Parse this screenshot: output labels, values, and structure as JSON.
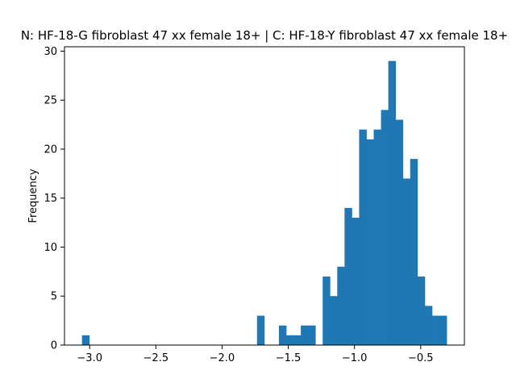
{
  "chart_data": {
    "type": "bar",
    "subtype": "histogram",
    "title": "N: HF-18-G fibroblast 47 xx female 18+ | C: HF-18-Y fibroblast 47 xx female 18+",
    "xlabel": "",
    "ylabel": "Frequency",
    "xlim": [
      -3.19,
      -0.17
    ],
    "ylim": [
      0,
      30.45
    ],
    "x_ticks": [
      -3.0,
      -2.5,
      -2.0,
      -1.5,
      -1.0,
      -0.5
    ],
    "x_tick_labels": [
      "−3.0",
      "−2.5",
      "−2.0",
      "−1.5",
      "−1.0",
      "−0.5"
    ],
    "y_ticks": [
      0,
      5,
      10,
      15,
      20,
      25,
      30
    ],
    "y_tick_labels": [
      "0",
      "5",
      "10",
      "15",
      "20",
      "25",
      "30"
    ],
    "bin_start": -3.058,
    "bin_width": 0.05508,
    "counts": [
      1,
      0,
      0,
      0,
      0,
      0,
      0,
      0,
      0,
      0,
      0,
      0,
      0,
      0,
      0,
      0,
      0,
      0,
      0,
      0,
      0,
      0,
      0,
      0,
      3,
      0,
      0,
      2,
      1,
      1,
      2,
      2,
      0,
      7,
      5,
      8,
      14,
      13,
      22,
      21,
      22,
      24,
      29,
      23,
      17,
      19,
      7,
      4,
      3,
      3
    ],
    "color": "#1f77b4",
    "grid": false,
    "legend": "none"
  }
}
